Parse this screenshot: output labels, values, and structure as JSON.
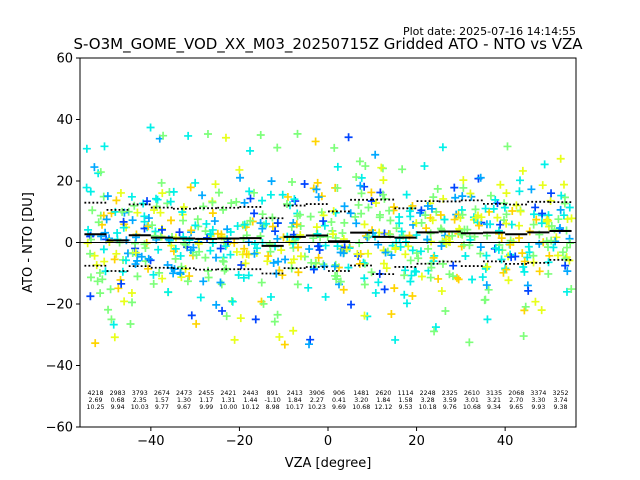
{
  "chart_data": {
    "type": "scatter",
    "title": "S-O3M_GOME_VOD_XX_M03_20250715Z Gridded ATO - NTO vs VZA",
    "subtitle": "Plot date: 2025-07-16 14:14:55",
    "xlabel": "VZA [degree]",
    "ylabel": "ATO - NTO [DU]",
    "xlim": [
      -56,
      56
    ],
    "ylim": [
      -60,
      60
    ],
    "xticks": [
      "−40",
      "−20",
      "0",
      "20",
      "40"
    ],
    "xtick_values": [
      -40,
      -20,
      0,
      20,
      40
    ],
    "yticks": [
      "−60",
      "−40",
      "−20",
      "0",
      "20",
      "40",
      "60"
    ],
    "ytick_values": [
      -60,
      -40,
      -20,
      0,
      20,
      40,
      60
    ],
    "grid": false,
    "marker": "plus",
    "colormap_colors": [
      "#0044ff",
      "#00a8ff",
      "#00f0e8",
      "#7dff7a",
      "#e8ff1a",
      "#ffd400"
    ],
    "bins": [
      {
        "center": -52.5,
        "count": "4218",
        "mean": "2.69",
        "std": "10.25"
      },
      {
        "center": -47.5,
        "count": "2983",
        "mean": "0.68",
        "std": "9.94"
      },
      {
        "center": -42.5,
        "count": "3793",
        "mean": "2.35",
        "std": "10.03"
      },
      {
        "center": -37.5,
        "count": "2674",
        "mean": "1.57",
        "std": "9.77"
      },
      {
        "center": -32.5,
        "count": "2473",
        "mean": "1.30",
        "std": "9.67"
      },
      {
        "center": -27.5,
        "count": "2455",
        "mean": "1.17",
        "std": "9.99"
      },
      {
        "center": -22.5,
        "count": "2421",
        "mean": "1.31",
        "std": "10.00"
      },
      {
        "center": -17.5,
        "count": "2443",
        "mean": "1.44",
        "std": "10.12"
      },
      {
        "center": -12.5,
        "count": "891",
        "mean": "-1.10",
        "std": "8.98"
      },
      {
        "center": -7.5,
        "count": "2413",
        "mean": "1.84",
        "std": "10.17"
      },
      {
        "center": -2.5,
        "count": "3906",
        "mean": "2.27",
        "std": "10.23"
      },
      {
        "center": 2.5,
        "count": "906",
        "mean": "0.41",
        "std": "9.69"
      },
      {
        "center": 7.5,
        "count": "1481",
        "mean": "3.20",
        "std": "10.68"
      },
      {
        "center": 12.5,
        "count": "2620",
        "mean": "1.84",
        "std": "12.12"
      },
      {
        "center": 17.5,
        "count": "1114",
        "mean": "1.58",
        "std": "9.53"
      },
      {
        "center": 22.5,
        "count": "2248",
        "mean": "3.28",
        "std": "10.18"
      },
      {
        "center": 27.5,
        "count": "2325",
        "mean": "3.59",
        "std": "9.76"
      },
      {
        "center": 32.5,
        "count": "2610",
        "mean": "3.01",
        "std": "10.68"
      },
      {
        "center": 37.5,
        "count": "3135",
        "mean": "3.21",
        "std": "9.34"
      },
      {
        "center": 42.5,
        "count": "2068",
        "mean": "2.70",
        "std": "9.65"
      },
      {
        "center": 47.5,
        "count": "3374",
        "mean": "3.30",
        "std": "9.93"
      },
      {
        "center": 52.5,
        "count": "3252",
        "mean": "3.74",
        "std": "9.38"
      }
    ]
  }
}
